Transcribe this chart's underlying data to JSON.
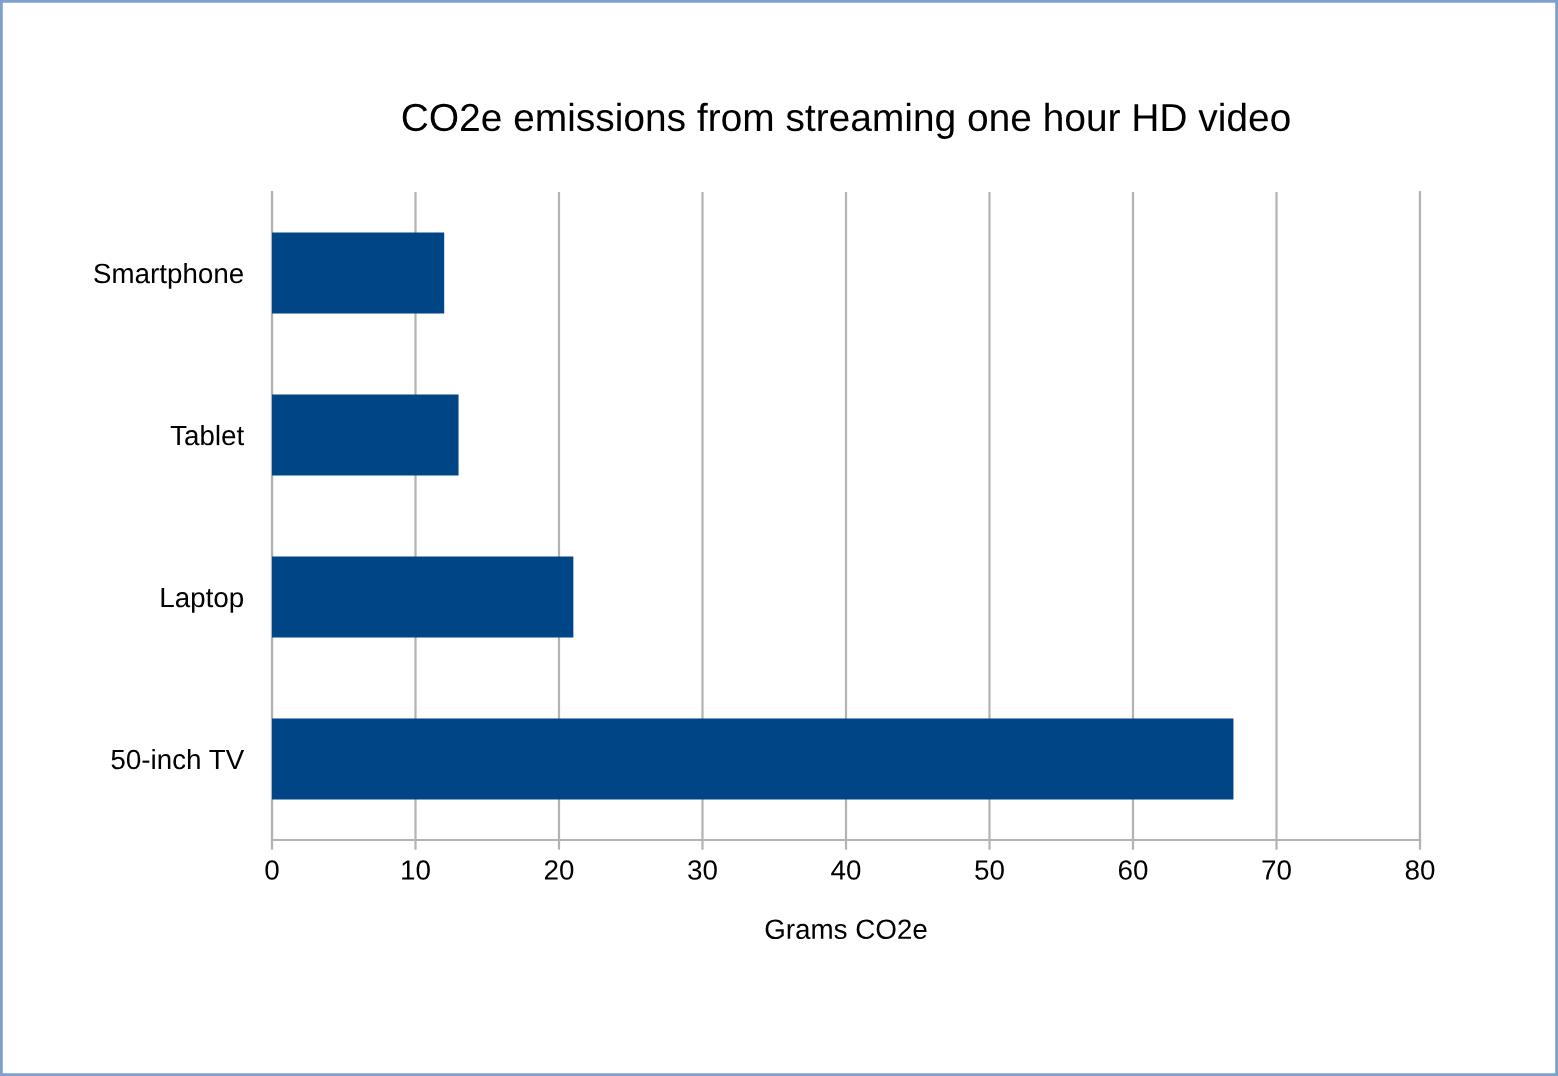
{
  "chart_data": {
    "type": "bar",
    "orientation": "horizontal",
    "title": "CO2e emissions from streaming one hour HD video",
    "xlabel": "Grams CO2e",
    "categories": [
      "Smartphone",
      "Tablet",
      "Laptop",
      "50-inch TV"
    ],
    "values": [
      12,
      13,
      21,
      67
    ],
    "color": "#004586",
    "xlim": [
      0,
      80
    ],
    "xticks": [
      0,
      10,
      20,
      30,
      40,
      50,
      60,
      70,
      80
    ],
    "grid": "x"
  }
}
